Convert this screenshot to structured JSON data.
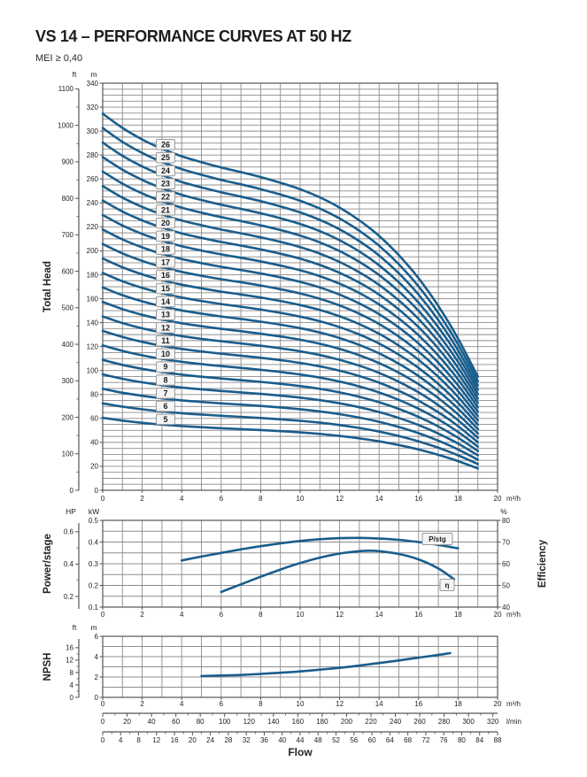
{
  "header": {
    "title": "VS 14 – PERFORMANCE CURVES AT 50 HZ",
    "subtitle": "MEI ≥ 0,40"
  },
  "colors": {
    "curve": "#1a5d8c",
    "grid": "#8c8c8c",
    "frame": "#555555",
    "text": "#232323",
    "box_fill": "#f4f4f4",
    "box_border": "#9a9a9a"
  },
  "chart_data": [
    {
      "id": "total_head",
      "type": "line",
      "y_axis_title": "Total Head",
      "x_axis": {
        "unit": "m³/h",
        "min": 0,
        "max": 20,
        "label_step": 2,
        "grid_step": 1
      },
      "y_axis_m": {
        "unit": "m",
        "min": 0,
        "max": 340,
        "label_step": 20,
        "grid_step": 5
      },
      "y_axis_ft": {
        "unit": "ft",
        "min": 0,
        "max": 1100,
        "label_step": 100,
        "minor_step": 50
      },
      "stage_curves": {
        "stages": [
          5,
          6,
          7,
          8,
          9,
          10,
          11,
          12,
          13,
          14,
          15,
          16,
          17,
          18,
          19,
          20,
          21,
          22,
          23,
          24,
          25,
          26
        ],
        "flow_m3h": [
          0,
          1,
          2,
          3,
          4,
          5,
          6,
          7,
          8,
          9,
          10,
          11,
          12,
          13,
          14,
          15,
          16,
          17,
          18,
          19
        ],
        "head_per_stage_m": [
          12.1,
          11.64,
          11.27,
          10.97,
          10.73,
          10.54,
          10.37,
          10.22,
          10.06,
          9.88,
          9.67,
          9.41,
          9.08,
          8.67,
          8.17,
          7.55,
          6.81,
          5.92,
          4.87,
          3.65
        ],
        "note": "total head of curve with N stages = N × head_per_stage_m"
      }
    },
    {
      "id": "power_efficiency",
      "type": "line",
      "y_left_title": "Power/stage",
      "y_right_title": "Efficiency",
      "x_axis": {
        "unit": "m³/h",
        "min": 0,
        "max": 20,
        "label_step": 2,
        "grid_step": 1
      },
      "y_axis_kw": {
        "unit": "kW",
        "min": 0.1,
        "max": 0.5,
        "label_step": 0.1,
        "grid_step": 0.05
      },
      "y_axis_hp": {
        "unit": "HP",
        "labels": [
          0.2,
          0.4,
          0.6
        ]
      },
      "y_axis_pct": {
        "unit": "%",
        "min": 40,
        "max": 80,
        "label_step": 10
      },
      "series": [
        {
          "name": "P/stg",
          "axis": "kw",
          "points": [
            [
              4,
              0.315
            ],
            [
              5,
              0.333
            ],
            [
              6,
              0.35
            ],
            [
              7,
              0.366
            ],
            [
              8,
              0.381
            ],
            [
              9,
              0.394
            ],
            [
              10,
              0.405
            ],
            [
              11,
              0.413
            ],
            [
              12,
              0.418
            ],
            [
              13,
              0.419
            ],
            [
              14,
              0.416
            ],
            [
              15,
              0.41
            ],
            [
              16,
              0.4
            ],
            [
              17,
              0.387
            ],
            [
              18,
              0.371
            ]
          ]
        },
        {
          "name": "η",
          "axis": "pct",
          "points": [
            [
              6,
              47
            ],
            [
              7,
              50.5
            ],
            [
              8,
              54
            ],
            [
              9,
              57.3
            ],
            [
              10,
              60.3
            ],
            [
              11,
              62.8
            ],
            [
              12,
              64.7
            ],
            [
              13,
              65.8
            ],
            [
              13.5,
              66
            ],
            [
              14,
              65.8
            ],
            [
              15,
              64.5
            ],
            [
              16,
              62
            ],
            [
              17,
              57.8
            ],
            [
              17.8,
              52.8
            ]
          ]
        }
      ]
    },
    {
      "id": "npsh",
      "type": "line",
      "y_axis_title": "NPSH",
      "x_axis": {
        "unit": "m³/h",
        "min": 0,
        "max": 20,
        "label_step": 2,
        "grid_step": 1
      },
      "y_axis_m": {
        "unit": "m",
        "min": 0,
        "max": 6,
        "label_step": 2,
        "grid_step": 1
      },
      "y_axis_ft": {
        "unit": "ft",
        "labels": [
          0,
          4,
          8,
          12,
          16
        ]
      },
      "series": [
        {
          "name": "NPSH",
          "points": [
            [
              5,
              2.1
            ],
            [
              6,
              2.15
            ],
            [
              7,
              2.2
            ],
            [
              8,
              2.3
            ],
            [
              9,
              2.42
            ],
            [
              10,
              2.55
            ],
            [
              11,
              2.72
            ],
            [
              12,
              2.9
            ],
            [
              13,
              3.12
            ],
            [
              14,
              3.37
            ],
            [
              15,
              3.63
            ],
            [
              16,
              3.9
            ],
            [
              17,
              4.17
            ],
            [
              17.6,
              4.35
            ]
          ]
        }
      ],
      "extra_x_rulers": [
        {
          "unit": "l/min",
          "labels": [
            0,
            20,
            40,
            60,
            80,
            100,
            120,
            140,
            160,
            180,
            200,
            220,
            240,
            260,
            280,
            300,
            320
          ]
        },
        {
          "unit": "",
          "labels": [
            0,
            4,
            8,
            12,
            16,
            20,
            24,
            28,
            32,
            36,
            40,
            44,
            48,
            52,
            56,
            60,
            64,
            68,
            72,
            76,
            80,
            84,
            88
          ]
        }
      ],
      "x_title": "Flow"
    }
  ]
}
